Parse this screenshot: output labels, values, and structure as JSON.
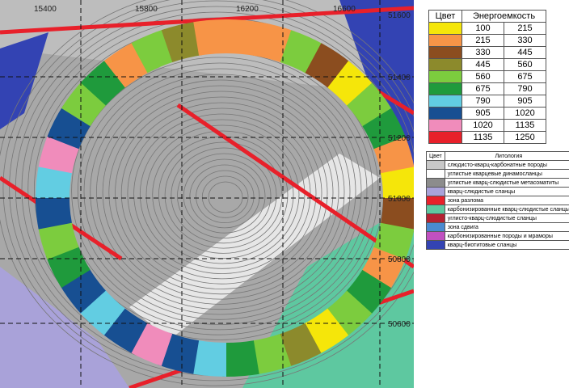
{
  "map": {
    "top_labels": [
      "15400",
      "15800",
      "16200",
      "16600"
    ],
    "right_labels": [
      "51600",
      "51400",
      "51200",
      "51000",
      "50800",
      "50600"
    ]
  },
  "energy_legend": {
    "header": [
      "Цвет",
      "Энергоемкость"
    ],
    "rows": [
      {
        "color": "#f5e60a",
        "from": "100",
        "to": "215"
      },
      {
        "color": "#f79447",
        "from": "215",
        "to": "330"
      },
      {
        "color": "#8b4d1f",
        "from": "330",
        "to": "445"
      },
      {
        "color": "#8c8a2c",
        "from": "445",
        "to": "560"
      },
      {
        "color": "#7ccc3e",
        "from": "560",
        "to": "675"
      },
      {
        "color": "#1f9a3c",
        "from": "675",
        "to": "790"
      },
      {
        "color": "#62cde2",
        "from": "790",
        "to": "905"
      },
      {
        "color": "#174f92",
        "from": "905",
        "to": "1020"
      },
      {
        "color": "#f08cbb",
        "from": "1020",
        "to": "1135"
      },
      {
        "color": "#e8202a",
        "from": "1135",
        "to": "1250"
      }
    ]
  },
  "lithology_legend": {
    "header": [
      "Цвет",
      "Литология"
    ],
    "rows": [
      {
        "color": "#c8c8c8",
        "label": "слюдисто-кварц-карбонатные породы"
      },
      {
        "color": "#ffffff",
        "label": "углистые кварцевые динамосланцы"
      },
      {
        "color": "#8c8c8c",
        "label": "углистые кварц-слюдистые метасоматиты"
      },
      {
        "color": "#a9a2d9",
        "label": "кварц-слюдистые сланцы"
      },
      {
        "color": "#e8202a",
        "label": "зона разлома"
      },
      {
        "color": "#5ec8a0",
        "label": "карбонизированные кварц-слюдистые сланцы"
      },
      {
        "color": "#b52232",
        "label": "углисто-кварц-слюдистые сланцы"
      },
      {
        "color": "#4a8ad0",
        "label": "зона сдвига"
      },
      {
        "color": "#c050c0",
        "label": "карбонизированные породы и мраморы"
      },
      {
        "color": "#3343b3",
        "label": "кварц-биотитовые сланцы"
      }
    ]
  }
}
